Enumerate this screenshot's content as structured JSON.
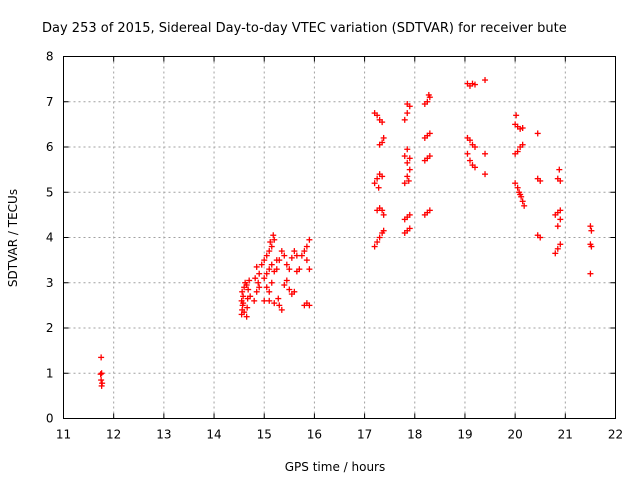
{
  "chart_data": {
    "type": "scatter",
    "title": "Day 253 of 2015, Sidereal Day-to-day VTEC variation (SDTVAR) for receiver bute",
    "xlabel": "GPS time / hours",
    "ylabel": "SDTVAR / TECUs",
    "xlim": [
      11,
      22
    ],
    "ylim": [
      0,
      8
    ],
    "x_ticks": [
      "11",
      "12",
      "13",
      "14",
      "15",
      "16",
      "17",
      "18",
      "19",
      "20",
      "21",
      "22"
    ],
    "y_ticks": [
      "0",
      "1",
      "2",
      "3",
      "4",
      "5",
      "6",
      "7",
      "8"
    ],
    "grid": true,
    "marker_color": "#ff0000",
    "marker": "plus",
    "points": [
      [
        11.75,
        1.35
      ],
      [
        11.76,
        1.0
      ],
      [
        11.74,
        0.98
      ],
      [
        11.75,
        0.85
      ],
      [
        11.77,
        0.78
      ],
      [
        11.76,
        0.72
      ],
      [
        14.55,
        2.3
      ],
      [
        14.56,
        2.4
      ],
      [
        14.57,
        2.5
      ],
      [
        14.55,
        2.6
      ],
      [
        14.58,
        2.7
      ],
      [
        14.56,
        2.8
      ],
      [
        14.6,
        2.9
      ],
      [
        14.62,
        3.0
      ],
      [
        14.58,
        2.55
      ],
      [
        14.6,
        2.35
      ],
      [
        14.65,
        2.25
      ],
      [
        14.66,
        2.45
      ],
      [
        14.67,
        2.65
      ],
      [
        14.68,
        2.85
      ],
      [
        14.7,
        3.05
      ],
      [
        14.72,
        2.7
      ],
      [
        14.65,
        2.95
      ],
      [
        14.8,
        2.6
      ],
      [
        14.85,
        2.8
      ],
      [
        14.88,
        3.0
      ],
      [
        14.9,
        3.2
      ],
      [
        14.85,
        3.35
      ],
      [
        14.9,
        2.9
      ],
      [
        14.82,
        3.1
      ],
      [
        14.95,
        3.4
      ],
      [
        15.0,
        3.5
      ],
      [
        15.05,
        3.6
      ],
      [
        15.1,
        3.7
      ],
      [
        15.15,
        3.8
      ],
      [
        15.2,
        3.95
      ],
      [
        15.18,
        4.05
      ],
      [
        15.12,
        3.9
      ],
      [
        15.0,
        3.1
      ],
      [
        15.05,
        3.2
      ],
      [
        15.1,
        3.3
      ],
      [
        15.15,
        3.4
      ],
      [
        15.05,
        2.9
      ],
      [
        15.1,
        2.8
      ],
      [
        15.15,
        3.0
      ],
      [
        15.2,
        3.25
      ],
      [
        15.25,
        3.5
      ],
      [
        15.0,
        2.6
      ],
      [
        15.1,
        2.6
      ],
      [
        15.2,
        2.55
      ],
      [
        15.3,
        2.5
      ],
      [
        15.35,
        2.4
      ],
      [
        15.28,
        2.65
      ],
      [
        15.25,
        3.3
      ],
      [
        15.3,
        3.5
      ],
      [
        15.35,
        3.7
      ],
      [
        15.4,
        3.6
      ],
      [
        15.45,
        3.4
      ],
      [
        15.5,
        3.3
      ],
      [
        15.55,
        3.55
      ],
      [
        15.6,
        3.7
      ],
      [
        15.65,
        3.6
      ],
      [
        15.4,
        2.95
      ],
      [
        15.45,
        3.05
      ],
      [
        15.5,
        2.85
      ],
      [
        15.55,
        2.75
      ],
      [
        15.6,
        2.8
      ],
      [
        15.65,
        3.25
      ],
      [
        15.7,
        3.3
      ],
      [
        15.75,
        3.6
      ],
      [
        15.8,
        3.7
      ],
      [
        15.85,
        3.8
      ],
      [
        15.9,
        3.95
      ],
      [
        15.85,
        3.5
      ],
      [
        15.9,
        3.3
      ],
      [
        15.8,
        2.5
      ],
      [
        15.85,
        2.55
      ],
      [
        15.9,
        2.5
      ],
      [
        17.2,
        3.8
      ],
      [
        17.25,
        3.9
      ],
      [
        17.3,
        4.0
      ],
      [
        17.35,
        4.1
      ],
      [
        17.38,
        4.15
      ],
      [
        17.25,
        4.6
      ],
      [
        17.3,
        4.65
      ],
      [
        17.35,
        4.6
      ],
      [
        17.38,
        4.5
      ],
      [
        17.2,
        5.2
      ],
      [
        17.25,
        5.3
      ],
      [
        17.3,
        5.4
      ],
      [
        17.35,
        5.35
      ],
      [
        17.28,
        5.1
      ],
      [
        17.3,
        6.05
      ],
      [
        17.35,
        6.1
      ],
      [
        17.38,
        6.2
      ],
      [
        17.2,
        6.75
      ],
      [
        17.25,
        6.7
      ],
      [
        17.3,
        6.6
      ],
      [
        17.35,
        6.55
      ],
      [
        17.8,
        4.1
      ],
      [
        17.85,
        4.15
      ],
      [
        17.9,
        4.2
      ],
      [
        17.8,
        4.4
      ],
      [
        17.85,
        4.45
      ],
      [
        17.9,
        4.5
      ],
      [
        17.8,
        5.2
      ],
      [
        17.85,
        5.35
      ],
      [
        17.9,
        5.5
      ],
      [
        17.85,
        5.65
      ],
      [
        17.8,
        5.8
      ],
      [
        17.85,
        5.95
      ],
      [
        17.9,
        5.75
      ],
      [
        17.88,
        5.25
      ],
      [
        17.8,
        6.6
      ],
      [
        17.85,
        6.75
      ],
      [
        17.9,
        6.9
      ],
      [
        17.85,
        6.95
      ],
      [
        18.2,
        4.5
      ],
      [
        18.25,
        4.55
      ],
      [
        18.3,
        4.6
      ],
      [
        18.2,
        5.7
      ],
      [
        18.25,
        5.75
      ],
      [
        18.3,
        5.8
      ],
      [
        18.2,
        6.2
      ],
      [
        18.25,
        6.25
      ],
      [
        18.3,
        6.3
      ],
      [
        18.2,
        6.95
      ],
      [
        18.25,
        7.0
      ],
      [
        18.3,
        7.1
      ],
      [
        18.28,
        7.15
      ],
      [
        19.05,
        5.85
      ],
      [
        19.1,
        5.7
      ],
      [
        19.15,
        5.6
      ],
      [
        19.2,
        5.55
      ],
      [
        19.05,
        6.2
      ],
      [
        19.1,
        6.15
      ],
      [
        19.15,
        6.05
      ],
      [
        19.2,
        6.0
      ],
      [
        19.05,
        7.4
      ],
      [
        19.1,
        7.35
      ],
      [
        19.15,
        7.4
      ],
      [
        19.2,
        7.38
      ],
      [
        19.4,
        7.48
      ],
      [
        19.4,
        5.85
      ],
      [
        19.4,
        5.4
      ],
      [
        20.0,
        5.85
      ],
      [
        20.05,
        5.9
      ],
      [
        20.1,
        6.0
      ],
      [
        20.15,
        6.05
      ],
      [
        20.0,
        6.5
      ],
      [
        20.05,
        6.45
      ],
      [
        20.1,
        6.4
      ],
      [
        20.15,
        6.42
      ],
      [
        20.02,
        6.7
      ],
      [
        20.0,
        5.2
      ],
      [
        20.05,
        5.1
      ],
      [
        20.08,
        5.0
      ],
      [
        20.12,
        4.9
      ],
      [
        20.15,
        4.8
      ],
      [
        20.18,
        4.7
      ],
      [
        20.1,
        4.95
      ],
      [
        20.45,
        6.3
      ],
      [
        20.45,
        5.3
      ],
      [
        20.5,
        5.25
      ],
      [
        20.45,
        4.05
      ],
      [
        20.5,
        4.0
      ],
      [
        20.8,
        3.65
      ],
      [
        20.85,
        3.75
      ],
      [
        20.9,
        3.85
      ],
      [
        20.85,
        4.25
      ],
      [
        20.9,
        4.4
      ],
      [
        20.8,
        4.5
      ],
      [
        20.85,
        4.55
      ],
      [
        20.9,
        4.6
      ],
      [
        20.85,
        5.3
      ],
      [
        20.9,
        5.25
      ],
      [
        20.88,
        5.5
      ],
      [
        21.5,
        4.25
      ],
      [
        21.52,
        4.15
      ],
      [
        21.5,
        3.85
      ],
      [
        21.52,
        3.8
      ],
      [
        21.5,
        3.2
      ]
    ]
  }
}
